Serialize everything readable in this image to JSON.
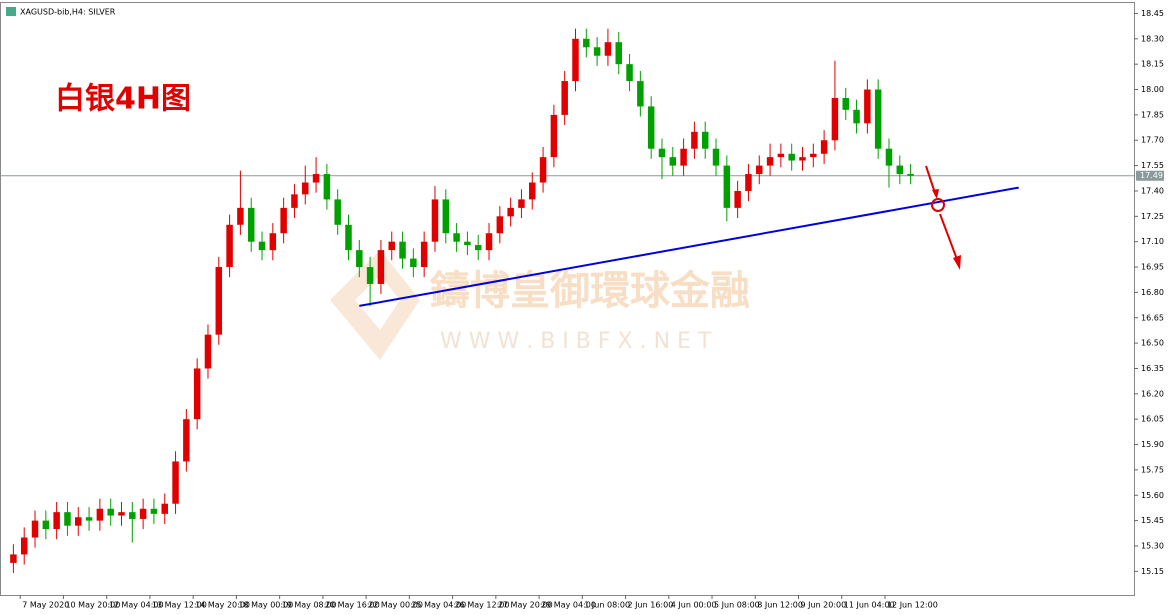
{
  "chart_data": {
    "type": "candlestick",
    "title": "XAGUSD-bib,H4: SILVER",
    "annotation": "白银4H图",
    "watermark": "鑄博皇御環球金融",
    "watermark_url": "W W W . B I B F X . N E T",
    "up_color": "#e00000",
    "down_color": "#00a000",
    "categories": [
      null,
      "7 May 2020",
      null,
      null,
      null,
      "10 May 20:00",
      null,
      null,
      null,
      "12 May 04:00",
      null,
      null,
      null,
      "13 May 12:00",
      null,
      null,
      null,
      "14 May 20:00",
      null,
      null,
      null,
      "18 May 00:00",
      null,
      null,
      null,
      "19 May 08:00",
      null,
      null,
      null,
      "20 May 16:00",
      null,
      null,
      null,
      "22 May 00:00",
      null,
      null,
      null,
      "25 May 04:00",
      null,
      null,
      null,
      "26 May 12:00",
      null,
      null,
      null,
      "27 May 20:00",
      null,
      null,
      null,
      "29 May 04:00",
      null,
      null,
      null,
      "1 Jun 08:00",
      null,
      null,
      null,
      "2 Jun 16:00",
      null,
      null,
      null,
      "4 Jun 00:00",
      null,
      null,
      null,
      "5 Jun 08:00",
      null,
      null,
      null,
      "8 Jun 12:00",
      null,
      null,
      null,
      "9 Jun 20:00",
      null,
      null,
      null,
      "11 Jun 04:00",
      null,
      null,
      null,
      "12 Jun 12:00",
      null,
      null
    ],
    "open": [
      15.2,
      15.25,
      15.35,
      15.45,
      15.4,
      15.5,
      15.42,
      15.47,
      15.45,
      15.52,
      15.48,
      15.5,
      15.46,
      15.52,
      15.49,
      15.55,
      15.8,
      16.05,
      16.35,
      16.55,
      16.95,
      17.2,
      17.3,
      17.1,
      17.05,
      17.15,
      17.3,
      17.38,
      17.45,
      17.5,
      17.35,
      17.2,
      17.05,
      16.95,
      16.85,
      17.05,
      17.1,
      17.0,
      16.95,
      17.1,
      17.35,
      17.15,
      17.1,
      17.08,
      17.05,
      17.15,
      17.25,
      17.3,
      17.35,
      17.45,
      17.6,
      17.85,
      18.05,
      18.3,
      18.25,
      18.2,
      18.28,
      18.15,
      18.05,
      17.9,
      17.65,
      17.6,
      17.55,
      17.65,
      17.75,
      17.65,
      17.55,
      17.3,
      17.4,
      17.5,
      17.55,
      17.6,
      17.62,
      17.58,
      17.6,
      17.62,
      17.7,
      17.95,
      17.88,
      17.8,
      18.0,
      17.65,
      17.55,
      17.5
    ],
    "high": [
      15.31,
      15.41,
      15.51,
      15.51,
      15.56,
      15.56,
      15.53,
      15.53,
      15.58,
      15.58,
      15.56,
      15.56,
      15.58,
      15.58,
      15.61,
      15.86,
      16.11,
      16.41,
      16.61,
      17.01,
      17.26,
      17.52,
      17.36,
      17.16,
      17.21,
      17.36,
      17.44,
      17.55,
      17.6,
      17.56,
      17.41,
      17.26,
      17.11,
      17.01,
      17.11,
      17.16,
      17.16,
      17.06,
      17.16,
      17.43,
      17.41,
      17.21,
      17.16,
      17.14,
      17.21,
      17.31,
      17.36,
      17.41,
      17.51,
      17.66,
      17.91,
      18.11,
      18.36,
      18.36,
      18.31,
      18.36,
      18.34,
      18.21,
      18.11,
      17.96,
      17.71,
      17.66,
      17.71,
      17.81,
      17.81,
      17.71,
      17.61,
      17.46,
      17.56,
      17.61,
      17.68,
      17.68,
      17.68,
      17.66,
      17.68,
      17.76,
      18.17,
      18.01,
      17.94,
      18.06,
      18.06,
      17.71,
      17.61,
      17.56
    ],
    "low": [
      15.14,
      15.19,
      15.29,
      15.34,
      15.34,
      15.36,
      15.36,
      15.39,
      15.39,
      15.42,
      15.42,
      15.32,
      15.4,
      15.43,
      15.43,
      15.49,
      15.74,
      15.99,
      16.29,
      16.49,
      16.89,
      17.14,
      17.04,
      16.99,
      16.99,
      17.09,
      17.24,
      17.32,
      17.39,
      17.29,
      17.14,
      16.99,
      16.89,
      16.72,
      16.79,
      16.99,
      16.94,
      16.89,
      16.89,
      17.04,
      17.09,
      17.04,
      17.02,
      16.99,
      16.99,
      17.09,
      17.19,
      17.24,
      17.29,
      17.39,
      17.54,
      17.79,
      17.99,
      18.19,
      18.14,
      18.14,
      18.09,
      17.99,
      17.84,
      17.59,
      17.47,
      17.49,
      17.49,
      17.59,
      17.59,
      17.49,
      17.22,
      17.24,
      17.34,
      17.44,
      17.49,
      17.54,
      17.52,
      17.52,
      17.54,
      17.56,
      17.64,
      17.82,
      17.74,
      17.74,
      17.59,
      17.42,
      17.44,
      17.44
    ],
    "close": [
      15.25,
      15.35,
      15.45,
      15.4,
      15.5,
      15.42,
      15.47,
      15.45,
      15.52,
      15.48,
      15.5,
      15.46,
      15.52,
      15.49,
      15.55,
      15.8,
      16.05,
      16.35,
      16.55,
      16.95,
      17.2,
      17.3,
      17.1,
      17.05,
      17.15,
      17.3,
      17.38,
      17.45,
      17.5,
      17.35,
      17.2,
      17.05,
      16.95,
      16.85,
      17.05,
      17.1,
      17.0,
      16.95,
      17.1,
      17.35,
      17.15,
      17.1,
      17.08,
      17.05,
      17.15,
      17.25,
      17.3,
      17.35,
      17.45,
      17.6,
      17.85,
      18.05,
      18.3,
      18.25,
      18.2,
      18.28,
      18.15,
      18.05,
      17.9,
      17.65,
      17.6,
      17.55,
      17.65,
      17.75,
      17.65,
      17.55,
      17.3,
      17.4,
      17.5,
      17.55,
      17.6,
      17.62,
      17.58,
      17.6,
      17.62,
      17.7,
      17.95,
      17.88,
      17.8,
      18.0,
      17.65,
      17.55,
      17.5,
      17.49
    ],
    "last_price": 17.49,
    "trendline": {
      "color": "#0000dd",
      "x": [
        32,
        93
      ],
      "y": [
        16.72,
        17.42
      ]
    },
    "ylim": [
      15.01,
      18.5
    ],
    "yticks": [
      18.45,
      {
        "value": 18.3,
        "label": "18.30"
      },
      18.15,
      {
        "value": 18.0,
        "label": "18.00"
      },
      17.85,
      {
        "value": 17.7,
        "label": "17.70"
      },
      17.55,
      {
        "value": 17.4,
        "label": "17.40"
      },
      17.25,
      {
        "value": 17.1,
        "label": "17.10"
      },
      16.95,
      {
        "value": 16.8,
        "label": "16.80"
      },
      16.65,
      {
        "value": 16.5,
        "label": "16.50"
      },
      16.35,
      {
        "value": 16.2,
        "label": "16.20"
      },
      16.05,
      {
        "value": 15.9,
        "label": "15.90"
      },
      15.75,
      {
        "value": 15.6,
        "label": "15.60"
      },
      15.45,
      {
        "value": 15.3,
        "label": "15.30"
      },
      15.15
    ]
  }
}
